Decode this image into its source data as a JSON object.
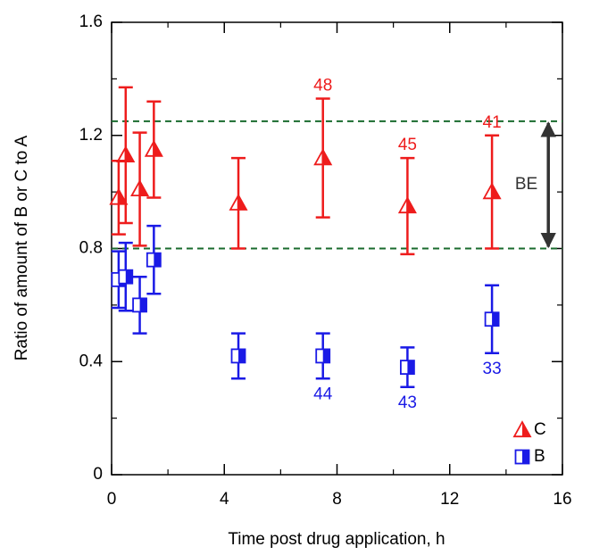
{
  "chart_data": {
    "type": "errorbar",
    "x_label": "Time post drug application, h",
    "y_label": "Ratio of amount of B or C to A",
    "xlim": [
      0,
      16
    ],
    "xticks": [
      0,
      4,
      8,
      12,
      16
    ],
    "ylim": [
      0,
      1.6
    ],
    "yticks": [
      0,
      0.4,
      0.8,
      1.2,
      1.6
    ],
    "reference_lines": [
      1.25,
      0.8
    ],
    "reference_color": "#1a6b2e",
    "reference_label": "BE",
    "legend_position": "lower right",
    "series": [
      {
        "name": "C",
        "color": "#ee1c1c",
        "marker": "triangle",
        "x": [
          0.25,
          0.5,
          1,
          1.5,
          4.5,
          7.5,
          10.5,
          13.5
        ],
        "values": [
          0.98,
          1.13,
          1.01,
          1.15,
          0.96,
          1.12,
          0.95,
          1.0
        ],
        "errors": [
          0.13,
          0.24,
          0.2,
          0.17,
          0.16,
          0.21,
          0.17,
          0.2
        ],
        "n_labels": [
          null,
          null,
          null,
          null,
          null,
          "48",
          "45",
          "41"
        ]
      },
      {
        "name": "B",
        "color": "#1a1ae6",
        "marker": "square",
        "x": [
          0.25,
          0.5,
          1,
          1.5,
          4.5,
          7.5,
          10.5,
          13.5
        ],
        "values": [
          0.69,
          0.7,
          0.6,
          0.76,
          0.42,
          0.42,
          0.38,
          0.55
        ],
        "errors": [
          0.1,
          0.12,
          0.1,
          0.12,
          0.08,
          0.08,
          0.07,
          0.12
        ],
        "n_labels": [
          null,
          null,
          null,
          null,
          null,
          "44",
          "43",
          "33"
        ]
      }
    ]
  }
}
